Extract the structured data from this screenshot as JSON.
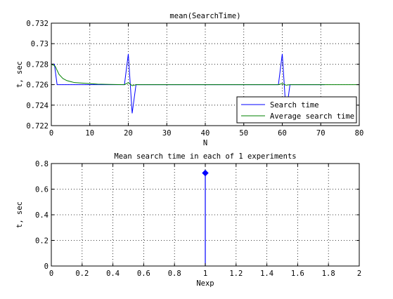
{
  "chart_data": [
    {
      "type": "line",
      "title": "mean(SearchTime)",
      "xlabel": "N",
      "ylabel": "t, sec",
      "xlim": [
        0,
        80
      ],
      "ylim": [
        0.722,
        0.732
      ],
      "xticks": [
        0,
        10,
        20,
        30,
        40,
        50,
        60,
        70,
        80
      ],
      "yticks": [
        0.722,
        0.724,
        0.726,
        0.728,
        0.73,
        0.732
      ],
      "ytick_labels": [
        "0.722",
        "0.724",
        "0.726",
        "0.728",
        "0.73",
        "0.732"
      ],
      "grid": true,
      "legend_position": "bottom-right",
      "series": [
        {
          "name": "Search time",
          "color": "#0000ff",
          "x": [
            0,
            0.8,
            1.5,
            19,
            20,
            21,
            22,
            59,
            60,
            61,
            62,
            71
          ],
          "y": [
            0.728,
            0.728,
            0.726,
            0.726,
            0.729,
            0.7232,
            0.726,
            0.726,
            0.729,
            0.7232,
            0.726,
            0.726
          ]
        },
        {
          "name": "Average search time",
          "color": "#008000",
          "x": [
            0,
            1,
            2,
            3,
            4,
            5,
            6,
            8,
            10,
            12,
            15,
            19,
            20,
            21,
            22,
            30,
            40,
            59,
            60,
            61,
            62,
            70,
            80
          ],
          "y": [
            0.728,
            0.7278,
            0.727,
            0.7266,
            0.7264,
            0.7263,
            0.7262,
            0.72615,
            0.7261,
            0.72605,
            0.72602,
            0.726,
            0.7262,
            0.7259,
            0.726,
            0.726,
            0.726,
            0.726,
            0.7261,
            0.72595,
            0.726,
            0.726,
            0.726
          ]
        }
      ]
    },
    {
      "type": "stem",
      "title": "Mean search time in each of 1 experiments",
      "xlabel": "Nexp",
      "ylabel": "t, sec",
      "xlim": [
        0,
        2
      ],
      "ylim": [
        0,
        0.8
      ],
      "xticks": [
        0,
        0.2,
        0.4,
        0.6,
        0.8,
        1,
        1.2,
        1.4,
        1.6,
        1.8,
        2
      ],
      "xtick_labels": [
        "0",
        "0.2",
        "0.4",
        "0.6",
        "0.8",
        "1",
        "1.2",
        "1.4",
        "1.6",
        "1.8",
        "2"
      ],
      "yticks": [
        0,
        0.2,
        0.4,
        0.6,
        0.8
      ],
      "ytick_labels": [
        "0",
        "0.2",
        "0.4",
        "0.6",
        "0.8"
      ],
      "grid": true,
      "series": [
        {
          "color": "#0000ff",
          "x": [
            1
          ],
          "y": [
            0.726
          ]
        }
      ]
    }
  ]
}
